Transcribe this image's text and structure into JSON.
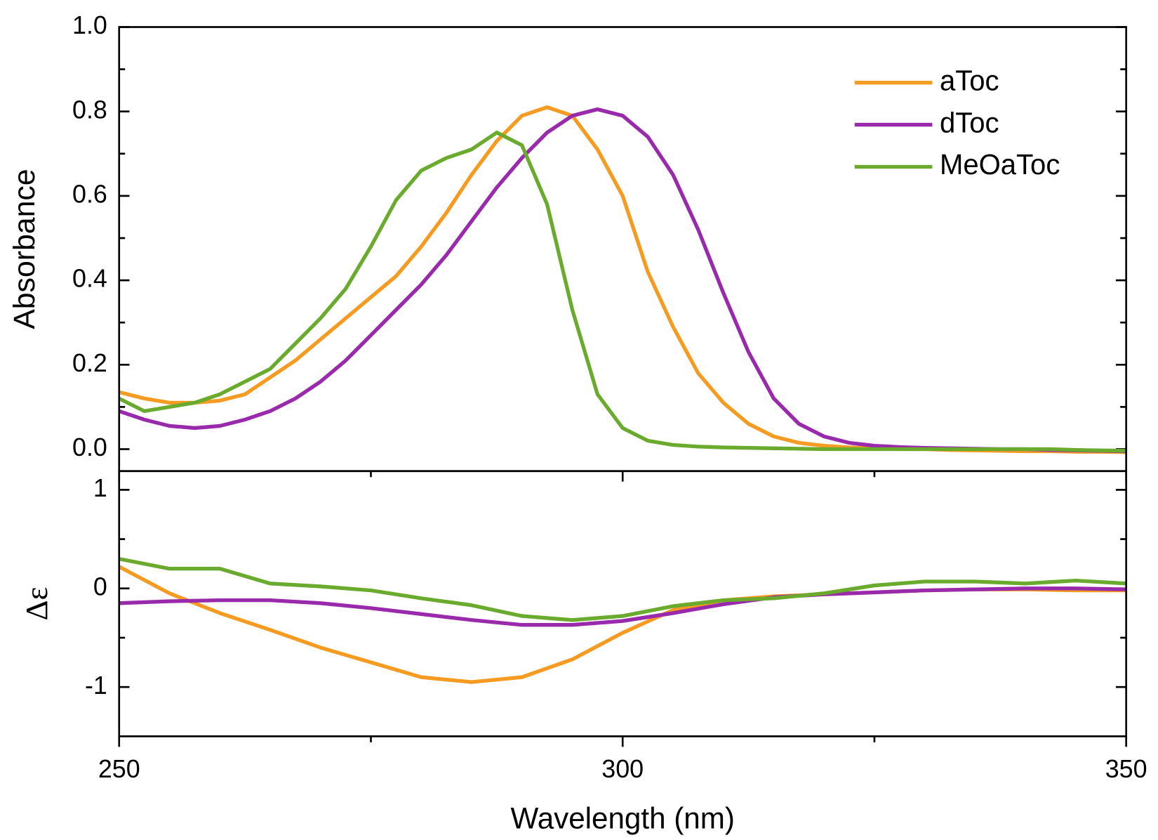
{
  "chart_data": [
    {
      "type": "line",
      "ylabel": "Absorbance",
      "x": [
        250,
        252.5,
        255,
        257.5,
        260,
        262.5,
        265,
        267.5,
        270,
        272.5,
        275,
        277.5,
        280,
        282.5,
        285,
        287.5,
        290,
        292.5,
        295,
        297.5,
        300,
        302.5,
        305,
        307.5,
        310,
        312.5,
        315,
        317.5,
        320,
        322.5,
        325,
        327.5,
        330,
        332.5,
        335,
        337.5,
        340,
        342.5,
        345,
        347.5,
        350
      ],
      "xlim": [
        250,
        350
      ],
      "ylim": [
        -0.052,
        1.0
      ],
      "yticks": [
        {
          "value": 0,
          "label": "0.0"
        },
        0.2,
        0.4,
        0.6,
        0.8,
        {
          "value": 1,
          "label": "1.0"
        }
      ],
      "yminorticks": [
        0.1,
        0.3,
        0.5,
        0.7,
        0.9
      ],
      "legend": "upper right",
      "series": [
        {
          "name": "aToc",
          "color": "#f59b22",
          "values": [
            0.135,
            0.12,
            0.11,
            0.11,
            0.115,
            0.13,
            0.17,
            0.21,
            0.26,
            0.31,
            0.36,
            0.41,
            0.48,
            0.56,
            0.65,
            0.73,
            0.79,
            0.81,
            0.79,
            0.71,
            0.6,
            0.42,
            0.29,
            0.18,
            0.11,
            0.06,
            0.03,
            0.015,
            0.008,
            0.004,
            0.002,
            0,
            0,
            -0.002,
            -0.003,
            -0.004,
            -0.005,
            -0.005,
            -0.006,
            -0.006,
            -0.007
          ]
        },
        {
          "name": "dToc",
          "color": "#9a2aac",
          "values": [
            0.09,
            0.07,
            0.055,
            0.05,
            0.055,
            0.07,
            0.09,
            0.12,
            0.16,
            0.21,
            0.27,
            0.33,
            0.39,
            0.46,
            0.54,
            0.62,
            0.69,
            0.75,
            0.79,
            0.805,
            0.79,
            0.74,
            0.65,
            0.52,
            0.37,
            0.23,
            0.12,
            0.06,
            0.03,
            0.015,
            0.008,
            0.005,
            0.003,
            0.002,
            0.001,
            0,
            0,
            -0.002,
            -0.003,
            -0.004,
            -0.005
          ]
        },
        {
          "name": "MeOaToc",
          "color": "#6aab2e",
          "values": [
            0.12,
            0.09,
            0.1,
            0.11,
            0.13,
            0.16,
            0.19,
            0.25,
            0.31,
            0.38,
            0.48,
            0.59,
            0.66,
            0.69,
            0.71,
            0.75,
            0.72,
            0.58,
            0.33,
            0.13,
            0.05,
            0.02,
            0.01,
            0.006,
            0.004,
            0.003,
            0.002,
            0.001,
            0,
            0,
            0,
            0,
            0,
            0,
            0,
            0,
            0,
            0,
            -0.002,
            -0.003,
            -0.004
          ]
        }
      ]
    },
    {
      "type": "line",
      "ylabel": "Δε",
      "xlabel": "Wavelength (nm)",
      "x": [
        250,
        255,
        260,
        265,
        270,
        275,
        280,
        285,
        290,
        295,
        300,
        305,
        310,
        315,
        320,
        325,
        330,
        335,
        340,
        345,
        350
      ],
      "xlim": [
        250,
        350
      ],
      "xticks": [
        250,
        300,
        350
      ],
      "xminorticks": [
        275,
        325
      ],
      "ylim": [
        -1.5,
        1.19
      ],
      "yticks": [
        -1,
        0,
        1
      ],
      "yminorticks": [
        -0.5,
        0.5
      ],
      "series": [
        {
          "name": "aToc",
          "color": "#f59b22",
          "values": [
            0.22,
            -0.05,
            -0.25,
            -0.42,
            -0.6,
            -0.75,
            -0.9,
            -0.95,
            -0.9,
            -0.72,
            -0.45,
            -0.22,
            -0.12,
            -0.08,
            -0.06,
            -0.04,
            -0.02,
            -0.01,
            -0.01,
            -0.02,
            -0.02
          ]
        },
        {
          "name": "dToc",
          "color": "#9a2aac",
          "values": [
            -0.15,
            -0.13,
            -0.12,
            -0.12,
            -0.15,
            -0.2,
            -0.26,
            -0.32,
            -0.37,
            -0.37,
            -0.33,
            -0.25,
            -0.16,
            -0.09,
            -0.06,
            -0.04,
            -0.02,
            -0.01,
            0,
            0,
            -0.01
          ]
        },
        {
          "name": "MeOaToc",
          "color": "#6aab2e",
          "values": [
            0.3,
            0.2,
            0.2,
            0.05,
            0.02,
            -0.02,
            -0.1,
            -0.17,
            -0.28,
            -0.32,
            -0.28,
            -0.18,
            -0.12,
            -0.1,
            -0.05,
            0.03,
            0.07,
            0.07,
            0.05,
            0.08,
            0.05
          ]
        }
      ]
    }
  ]
}
